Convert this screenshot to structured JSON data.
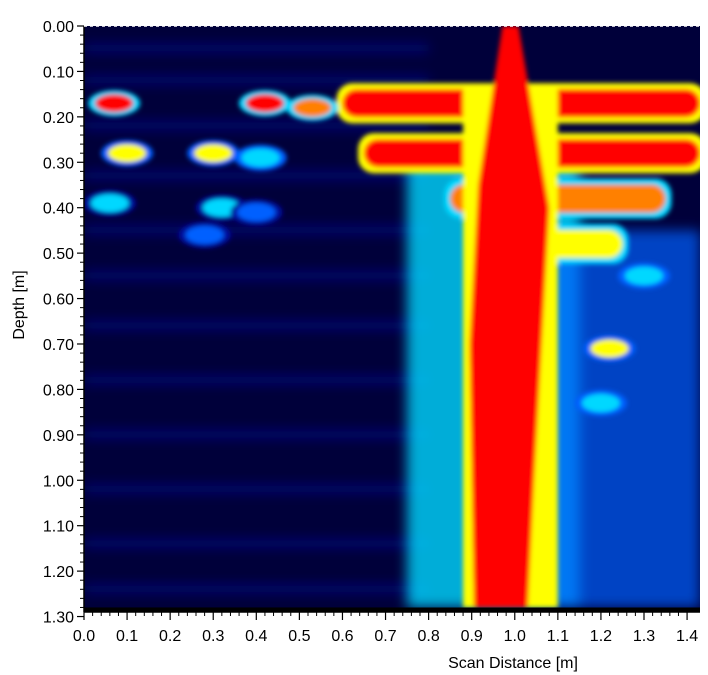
{
  "chart_data": {
    "type": "heatmap",
    "title": "",
    "xlabel": "Scan Distance [m]",
    "ylabel": "Depth [m]",
    "xlim": [
      0.0,
      1.43
    ],
    "ylim": [
      0.0,
      1.29
    ],
    "y_axis_inverted": true,
    "data_max_depth": 1.28,
    "x_ticks": [
      "0.0",
      "0.1",
      "0.2",
      "0.3",
      "0.4",
      "0.5",
      "0.6",
      "0.7",
      "0.8",
      "0.9",
      "1.0",
      "1.1",
      "1.2",
      "1.3",
      "1.4"
    ],
    "y_ticks": [
      "0.00",
      "0.10",
      "0.20",
      "0.30",
      "0.40",
      "0.50",
      "0.60",
      "0.70",
      "0.80",
      "0.90",
      "1.00",
      "1.10",
      "1.20",
      "1.30"
    ],
    "colormap": [
      "#00003a",
      "#0010a0",
      "#0060ff",
      "#00d8ff",
      "#ffff00",
      "#ff8000",
      "#ff0000"
    ],
    "legend": "none",
    "grid": false,
    "features": [
      {
        "type": "band",
        "depth": 0.17,
        "x_start": 0.6,
        "x_end": 1.43,
        "intensity": 1.0
      },
      {
        "type": "band",
        "depth": 0.28,
        "x_start": 0.65,
        "x_end": 1.43,
        "intensity": 1.0
      },
      {
        "type": "band",
        "depth": 0.38,
        "x_start": 0.85,
        "x_end": 1.35,
        "intensity": 0.9
      },
      {
        "type": "band",
        "depth": 0.48,
        "x_start": 0.9,
        "x_end": 1.25,
        "intensity": 0.7
      },
      {
        "type": "column",
        "x_center": 0.99,
        "depth_start": 0.0,
        "depth_end": 1.28,
        "intensity": 1.0
      },
      {
        "type": "spot",
        "x": 0.07,
        "depth": 0.17,
        "intensity": 1.0
      },
      {
        "type": "spot",
        "x": 0.42,
        "depth": 0.17,
        "intensity": 1.0
      },
      {
        "type": "spot",
        "x": 0.53,
        "depth": 0.18,
        "intensity": 0.8
      },
      {
        "type": "spot",
        "x": 0.1,
        "depth": 0.28,
        "intensity": 0.6
      },
      {
        "type": "spot",
        "x": 0.3,
        "depth": 0.28,
        "intensity": 0.6
      },
      {
        "type": "spot",
        "x": 0.41,
        "depth": 0.29,
        "intensity": 0.55
      },
      {
        "type": "spot",
        "x": 0.06,
        "depth": 0.39,
        "intensity": 0.45
      },
      {
        "type": "spot",
        "x": 0.32,
        "depth": 0.4,
        "intensity": 0.45
      },
      {
        "type": "spot",
        "x": 0.4,
        "depth": 0.41,
        "intensity": 0.4
      },
      {
        "type": "spot",
        "x": 0.28,
        "depth": 0.46,
        "intensity": 0.35
      },
      {
        "type": "spot",
        "x": 1.22,
        "depth": 0.71,
        "intensity": 0.6
      },
      {
        "type": "spot",
        "x": 1.2,
        "depth": 0.83,
        "intensity": 0.5
      },
      {
        "type": "spot",
        "x": 1.3,
        "depth": 0.55,
        "intensity": 0.5
      }
    ]
  }
}
